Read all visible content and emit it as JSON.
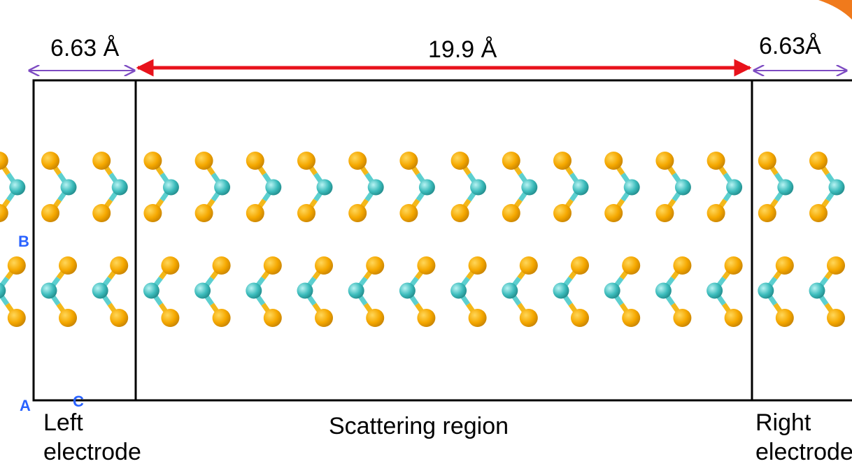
{
  "dimensions": {
    "left": "6.63 Å",
    "center": "19.9 Å",
    "right": "6.63Å"
  },
  "axes": {
    "b": "B",
    "a": "A",
    "c": "C"
  },
  "regions": {
    "left": [
      "Left",
      "electrode"
    ],
    "center": "Scattering region",
    "right": [
      "Right",
      "electrode"
    ]
  }
}
